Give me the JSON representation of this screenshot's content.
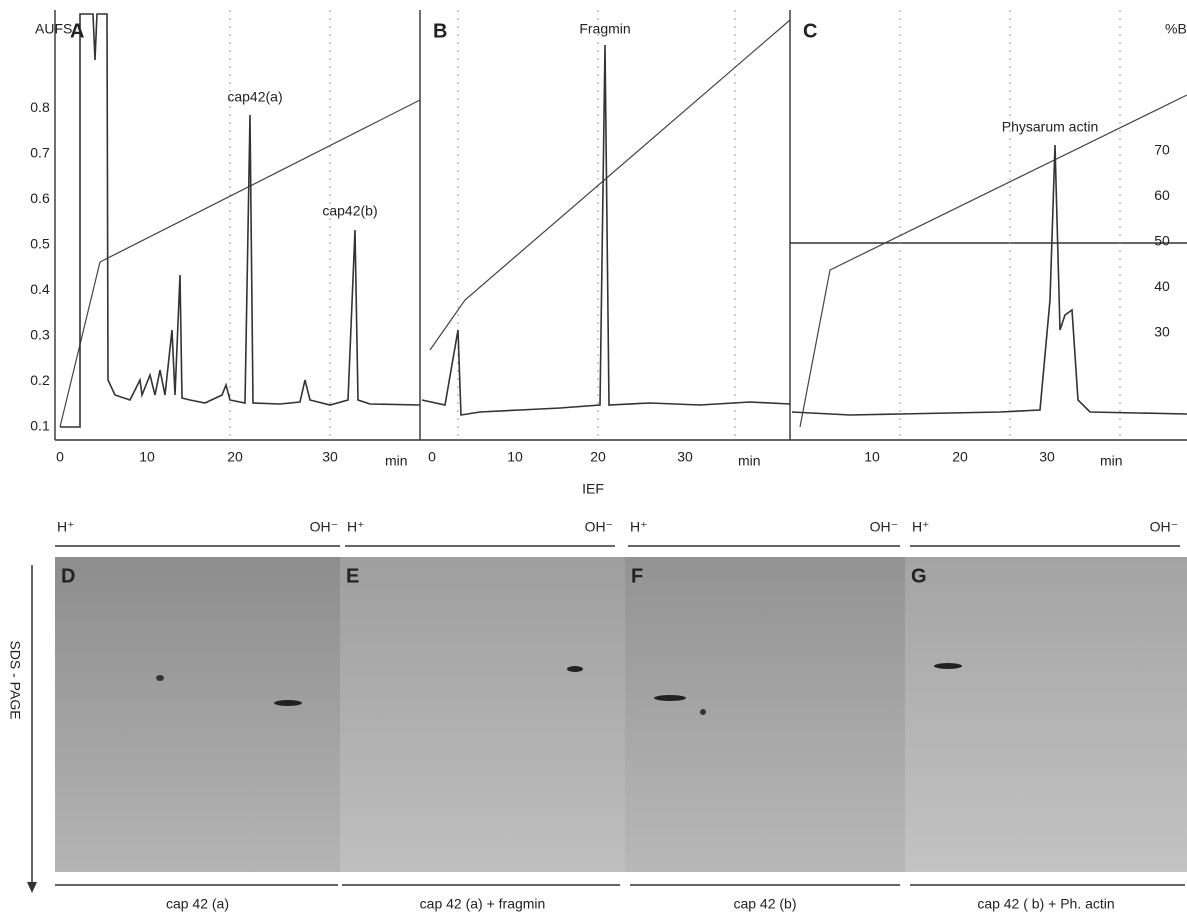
{
  "y_axis": {
    "label": "AUFS",
    "ticks": [
      "0.1",
      "0.2",
      "0.3",
      "0.4",
      "0.5",
      "0.6",
      "0.7",
      "0.8"
    ]
  },
  "y2_axis": {
    "label": "%B",
    "ticks": [
      "30",
      "40",
      "50",
      "60",
      "70"
    ]
  },
  "panels": [
    {
      "letter": "A",
      "x_ticks": [
        "0",
        "10",
        "20",
        "30"
      ],
      "x_unit": "min",
      "peaks": [
        "cap42(a)",
        "cap42(b)"
      ]
    },
    {
      "letter": "B",
      "x_ticks": [
        "0",
        "10",
        "20",
        "30"
      ],
      "x_unit": "min",
      "peaks": [
        "Fragmin"
      ]
    },
    {
      "letter": "C",
      "x_ticks": [
        "10",
        "20",
        "30"
      ],
      "x_unit": "min",
      "peaks": [
        "Physarum actin"
      ]
    }
  ],
  "ief": {
    "label": "IEF",
    "lanes": [
      {
        "left": "H⁺",
        "right": "OH⁻"
      },
      {
        "left": "H⁺",
        "right": "OH⁻"
      },
      {
        "left": "H⁺",
        "right": "OH⁻"
      },
      {
        "left": "H⁺",
        "right": "OH⁻"
      }
    ]
  },
  "sds_label": "SDS - PAGE",
  "gels": [
    {
      "letter": "D",
      "caption": "cap 42 (a)"
    },
    {
      "letter": "E",
      "caption": "cap 42 (a) + fragmin"
    },
    {
      "letter": "F",
      "caption": "cap 42 (b)"
    },
    {
      "letter": "G",
      "caption": "cap 42 ( b) + Ph. actin"
    }
  ]
}
